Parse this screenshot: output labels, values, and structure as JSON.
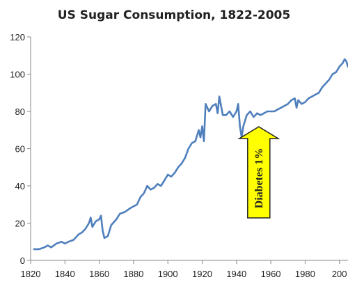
{
  "chart_data": {
    "type": "line",
    "title": "US Sugar Consumption, 1822-2005",
    "xlabel": "",
    "ylabel": "",
    "xlim": [
      1820,
      2005
    ],
    "ylim": [
      0,
      120
    ],
    "x_ticks": [
      "1820",
      "1840",
      "1860",
      "1880",
      "1900",
      "1920",
      "1940",
      "1960",
      "1980",
      "200"
    ],
    "y_ticks": [
      "0",
      "20",
      "40",
      "60",
      "80",
      "100",
      "120"
    ],
    "grid": false,
    "line_color": "#4f7fbd",
    "series": [
      {
        "x": [
          1822,
          1825,
          1828,
          1830,
          1832,
          1835,
          1838,
          1840,
          1842,
          1845,
          1848,
          1850,
          1852,
          1854,
          1855,
          1856,
          1858,
          1860,
          1861,
          1862,
          1863,
          1865,
          1867,
          1870,
          1872,
          1875,
          1878,
          1880,
          1882,
          1884,
          1886,
          1888,
          1890,
          1892,
          1894,
          1896,
          1898,
          1900,
          1902,
          1904,
          1906,
          1908,
          1910,
          1912,
          1914,
          1916,
          1918,
          1919,
          1920,
          1921,
          1922,
          1924,
          1926,
          1928,
          1929,
          1930,
          1932,
          1934,
          1936,
          1938,
          1940,
          1941,
          1942,
          1943,
          1944,
          1946,
          1948,
          1950,
          1952,
          1954,
          1956,
          1958,
          1960,
          1962,
          1964,
          1966,
          1968,
          1970,
          1972,
          1974,
          1975,
          1976,
          1978,
          1980,
          1982,
          1984,
          1986,
          1988,
          1990,
          1992,
          1994,
          1996,
          1998,
          2000,
          2002,
          2003,
          2004,
          2005
        ],
        "values": [
          6,
          6,
          7,
          8,
          7,
          9,
          10,
          9,
          10,
          11,
          14,
          15,
          17,
          20,
          23,
          18,
          21,
          22,
          24,
          16,
          12,
          13,
          19,
          22,
          25,
          26,
          28,
          29,
          30,
          34,
          36,
          40,
          38,
          39,
          41,
          40,
          43,
          46,
          45,
          47,
          50,
          52,
          55,
          60,
          63,
          64,
          70,
          66,
          72,
          64,
          84,
          80,
          83,
          84,
          79,
          88,
          78,
          78,
          80,
          77,
          80,
          84,
          72,
          66,
          72,
          78,
          80,
          77,
          79,
          78,
          79,
          80,
          80,
          80,
          81,
          82,
          83,
          84,
          86,
          87,
          82,
          86,
          84,
          85,
          87,
          88,
          89,
          90,
          93,
          95,
          97,
          100,
          101,
          104,
          106,
          108,
          107,
          104
        ]
      }
    ],
    "annotation": {
      "text": "Diabetes 1%",
      "fill_color": "#ffff00",
      "stroke_color": "#222222"
    }
  }
}
